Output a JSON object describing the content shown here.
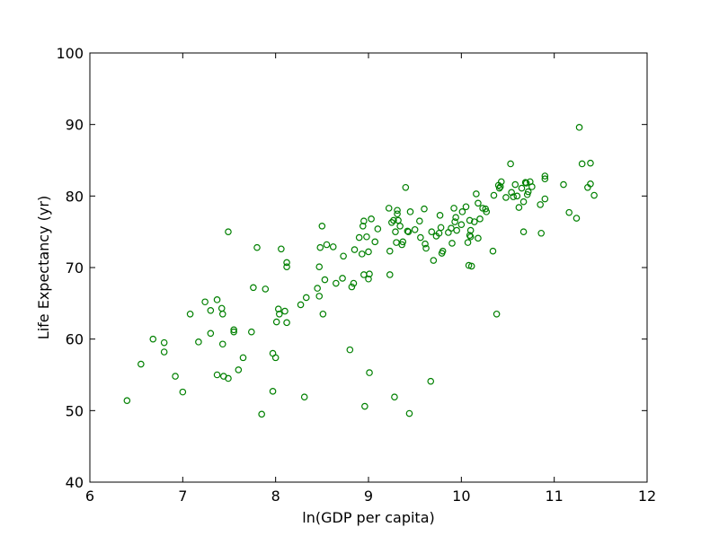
{
  "chart_data": {
    "type": "scatter",
    "xlabel": "ln(GDP per capita)",
    "ylabel": "Life Expectancy (yr)",
    "xlim": [
      6,
      12
    ],
    "ylim": [
      40,
      100
    ],
    "xticks": [
      6,
      7,
      8,
      9,
      10,
      11,
      12
    ],
    "yticks": [
      40,
      50,
      60,
      70,
      80,
      90,
      100
    ],
    "grid": false,
    "marker_color": "#008000",
    "marker": "hollow-circle",
    "series": [
      {
        "points": [
          [
            6.4,
            51.4
          ],
          [
            6.55,
            56.5
          ],
          [
            6.68,
            60.0
          ],
          [
            6.8,
            59.5
          ],
          [
            6.8,
            58.2
          ],
          [
            6.92,
            54.8
          ],
          [
            7.0,
            52.6
          ],
          [
            7.08,
            63.5
          ],
          [
            7.17,
            59.6
          ],
          [
            7.24,
            65.2
          ],
          [
            7.3,
            60.8
          ],
          [
            7.3,
            64.0
          ],
          [
            7.37,
            65.5
          ],
          [
            7.37,
            55.0
          ],
          [
            7.42,
            64.3
          ],
          [
            7.43,
            63.5
          ],
          [
            7.43,
            59.3
          ],
          [
            7.44,
            54.8
          ],
          [
            7.49,
            54.5
          ],
          [
            7.49,
            75.0
          ],
          [
            7.55,
            61.3
          ],
          [
            7.55,
            61.0
          ],
          [
            7.6,
            55.7
          ],
          [
            7.65,
            57.4
          ],
          [
            7.74,
            61.0
          ],
          [
            7.76,
            67.2
          ],
          [
            7.8,
            72.8
          ],
          [
            7.85,
            49.5
          ],
          [
            7.89,
            67.0
          ],
          [
            7.97,
            58.0
          ],
          [
            7.97,
            52.7
          ],
          [
            8.0,
            57.4
          ],
          [
            8.01,
            62.4
          ],
          [
            8.03,
            64.2
          ],
          [
            8.04,
            63.5
          ],
          [
            8.06,
            72.6
          ],
          [
            8.1,
            63.9
          ],
          [
            8.12,
            70.1
          ],
          [
            8.12,
            70.7
          ],
          [
            8.12,
            62.3
          ],
          [
            8.27,
            64.8
          ],
          [
            8.31,
            51.9
          ],
          [
            8.33,
            65.8
          ],
          [
            8.45,
            67.1
          ],
          [
            8.47,
            70.1
          ],
          [
            8.47,
            66.0
          ],
          [
            8.48,
            72.8
          ],
          [
            8.5,
            75.8
          ],
          [
            8.51,
            63.5
          ],
          [
            8.53,
            68.3
          ],
          [
            8.55,
            73.2
          ],
          [
            8.62,
            72.9
          ],
          [
            8.65,
            67.8
          ],
          [
            8.72,
            68.5
          ],
          [
            8.73,
            71.6
          ],
          [
            8.8,
            58.5
          ],
          [
            8.82,
            67.3
          ],
          [
            8.84,
            67.8
          ],
          [
            8.85,
            72.5
          ],
          [
            8.9,
            74.2
          ],
          [
            8.93,
            71.9
          ],
          [
            8.94,
            75.8
          ],
          [
            8.95,
            76.5
          ],
          [
            8.95,
            69.0
          ],
          [
            8.96,
            50.6
          ],
          [
            8.98,
            74.3
          ],
          [
            9.0,
            68.4
          ],
          [
            9.0,
            72.2
          ],
          [
            9.01,
            69.1
          ],
          [
            9.01,
            55.3
          ],
          [
            9.03,
            76.8
          ],
          [
            9.07,
            73.6
          ],
          [
            9.1,
            75.4
          ],
          [
            9.22,
            78.3
          ],
          [
            9.23,
            72.3
          ],
          [
            9.23,
            69.0
          ],
          [
            9.25,
            76.3
          ],
          [
            9.27,
            76.6
          ],
          [
            9.28,
            51.9
          ],
          [
            9.29,
            75.0
          ],
          [
            9.3,
            73.5
          ],
          [
            9.31,
            77.5
          ],
          [
            9.31,
            78.0
          ],
          [
            9.32,
            76.6
          ],
          [
            9.34,
            75.8
          ],
          [
            9.36,
            73.2
          ],
          [
            9.37,
            73.6
          ],
          [
            9.4,
            81.2
          ],
          [
            9.42,
            75.1
          ],
          [
            9.43,
            75.0
          ],
          [
            9.44,
            49.6
          ],
          [
            9.45,
            77.8
          ],
          [
            9.5,
            75.3
          ],
          [
            9.55,
            76.5
          ],
          [
            9.56,
            74.2
          ],
          [
            9.6,
            78.2
          ],
          [
            9.61,
            73.3
          ],
          [
            9.62,
            72.7
          ],
          [
            9.67,
            54.1
          ],
          [
            9.68,
            75.0
          ],
          [
            9.7,
            71.0
          ],
          [
            9.73,
            74.4
          ],
          [
            9.76,
            74.8
          ],
          [
            9.77,
            77.3
          ],
          [
            9.78,
            75.6
          ],
          [
            9.79,
            72.0
          ],
          [
            9.8,
            72.3
          ],
          [
            9.86,
            74.9
          ],
          [
            9.89,
            75.5
          ],
          [
            9.9,
            73.4
          ],
          [
            9.92,
            78.3
          ],
          [
            9.93,
            76.4
          ],
          [
            9.94,
            77.0
          ],
          [
            9.95,
            75.2
          ],
          [
            10.0,
            76.0
          ],
          [
            10.01,
            77.8
          ],
          [
            10.05,
            78.5
          ],
          [
            10.07,
            73.5
          ],
          [
            10.08,
            70.3
          ],
          [
            10.09,
            74.5
          ],
          [
            10.09,
            76.6
          ],
          [
            10.1,
            75.2
          ],
          [
            10.1,
            74.3
          ],
          [
            10.11,
            70.2
          ],
          [
            10.14,
            76.4
          ],
          [
            10.16,
            80.3
          ],
          [
            10.18,
            79.0
          ],
          [
            10.18,
            74.1
          ],
          [
            10.2,
            76.8
          ],
          [
            10.23,
            78.3
          ],
          [
            10.26,
            78.2
          ],
          [
            10.27,
            77.8
          ],
          [
            10.34,
            72.3
          ],
          [
            10.35,
            80.1
          ],
          [
            10.38,
            63.5
          ],
          [
            10.4,
            81.5
          ],
          [
            10.41,
            81.1
          ],
          [
            10.42,
            81.3
          ],
          [
            10.43,
            82.0
          ],
          [
            10.48,
            79.8
          ],
          [
            10.53,
            84.5
          ],
          [
            10.54,
            80.5
          ],
          [
            10.56,
            79.9
          ],
          [
            10.58,
            81.6
          ],
          [
            10.6,
            80.0
          ],
          [
            10.62,
            78.4
          ],
          [
            10.65,
            81.1
          ],
          [
            10.67,
            75.0
          ],
          [
            10.67,
            79.2
          ],
          [
            10.69,
            81.9
          ],
          [
            10.7,
            81.8
          ],
          [
            10.71,
            80.2
          ],
          [
            10.72,
            80.6
          ],
          [
            10.74,
            82.0
          ],
          [
            10.76,
            81.3
          ],
          [
            10.85,
            78.8
          ],
          [
            10.86,
            74.8
          ],
          [
            10.9,
            79.6
          ],
          [
            10.9,
            82.4
          ],
          [
            10.9,
            82.8
          ],
          [
            11.1,
            81.6
          ],
          [
            11.16,
            77.7
          ],
          [
            11.24,
            76.9
          ],
          [
            11.27,
            89.6
          ],
          [
            11.3,
            84.5
          ],
          [
            11.36,
            81.2
          ],
          [
            11.39,
            84.6
          ],
          [
            11.39,
            81.7
          ],
          [
            11.43,
            80.1
          ]
        ]
      }
    ]
  }
}
